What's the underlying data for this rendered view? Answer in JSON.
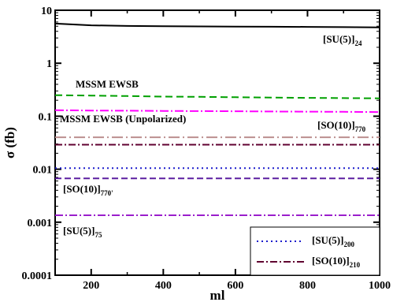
{
  "chart_data": {
    "type": "line",
    "xlabel": "ml",
    "ylabel": "σ (fb)",
    "xlim": [
      100,
      1000
    ],
    "ylim": [
      0.0001,
      10
    ],
    "yscale": "log",
    "grid": false,
    "legend_position": "bottom-right",
    "x_ticks": [
      "200",
      "400",
      "600",
      "800",
      "1000"
    ],
    "y_ticks": [
      "0.0001",
      "0.001",
      "0.01",
      "0.1",
      "1",
      "10"
    ],
    "x": [
      100,
      200,
      300,
      400,
      500,
      600,
      700,
      800,
      900,
      1000
    ],
    "series": [
      {
        "key": "su5_24",
        "color": "#000000",
        "dash": "solid",
        "width": 2,
        "values": [
          5.6,
          5.2,
          5.05,
          5.0,
          4.95,
          4.9,
          4.88,
          4.85,
          4.8,
          4.75
        ]
      },
      {
        "key": "mssm_ewsb",
        "color": "#00a000",
        "dash": "9,5",
        "width": 2,
        "values": [
          0.25,
          0.245,
          0.24,
          0.235,
          0.232,
          0.228,
          0.225,
          0.222,
          0.22,
          0.218
        ]
      },
      {
        "key": "mssm_unpol",
        "color": "#ff00ff",
        "dash": "11,3,2,3",
        "width": 2,
        "values": [
          0.13,
          0.128,
          0.127,
          0.126,
          0.125,
          0.124,
          0.123,
          0.122,
          0.121,
          0.12
        ]
      },
      {
        "key": "so10_770",
        "color": "#bc8f8f",
        "dash": "14,4,2,4",
        "width": 2,
        "values": [
          0.04,
          0.04,
          0.04,
          0.04,
          0.04,
          0.04,
          0.04,
          0.04,
          0.04,
          0.04
        ]
      },
      {
        "key": "so10_210",
        "color": "#600030",
        "dash": "9,3,2,3",
        "width": 2,
        "values": [
          0.029,
          0.029,
          0.029,
          0.029,
          0.029,
          0.029,
          0.029,
          0.029,
          0.029,
          0.029
        ]
      },
      {
        "key": "su5_200",
        "color": "#1c1ccc",
        "dash": "2,4",
        "width": 2,
        "values": [
          0.0105,
          0.0105,
          0.0105,
          0.0105,
          0.0105,
          0.0105,
          0.0105,
          0.0105,
          0.0105,
          0.0105
        ]
      },
      {
        "key": "so10_770p",
        "color": "#5b1fa0",
        "dash": "8,4",
        "width": 2,
        "values": [
          0.0067,
          0.0067,
          0.0067,
          0.0067,
          0.0067,
          0.0067,
          0.0067,
          0.0067,
          0.0067,
          0.0067
        ]
      },
      {
        "key": "su5_75",
        "color": "#9a1ecc",
        "dash": "10,3,2,3",
        "width": 2,
        "values": [
          0.00135,
          0.00135,
          0.00135,
          0.00135,
          0.00135,
          0.00135,
          0.00135,
          0.00135,
          0.00135,
          0.00135
        ]
      }
    ],
    "annotations": {
      "su5_24": {
        "main": "[SU(5)]",
        "sub": "24"
      },
      "mssm_ewsb": {
        "main": "MSSM EWSB"
      },
      "mssm_unpol": {
        "main": "MSSM EWSB (Unpolarized)"
      },
      "so10_770": {
        "main": "[SO(10)]",
        "sub": "770"
      },
      "so10_770p": {
        "main": "[SO(10)]",
        "sub": "770'"
      },
      "su5_75": {
        "main": "[SU(5)]",
        "sub": "75"
      }
    },
    "legend": [
      {
        "main": "[SU(5)]",
        "sub": "200",
        "color": "#1c1ccc",
        "dash": "2,4"
      },
      {
        "main": "[SO(10)]",
        "sub": "210",
        "color": "#600030",
        "dash": "9,3,2,3"
      }
    ]
  }
}
